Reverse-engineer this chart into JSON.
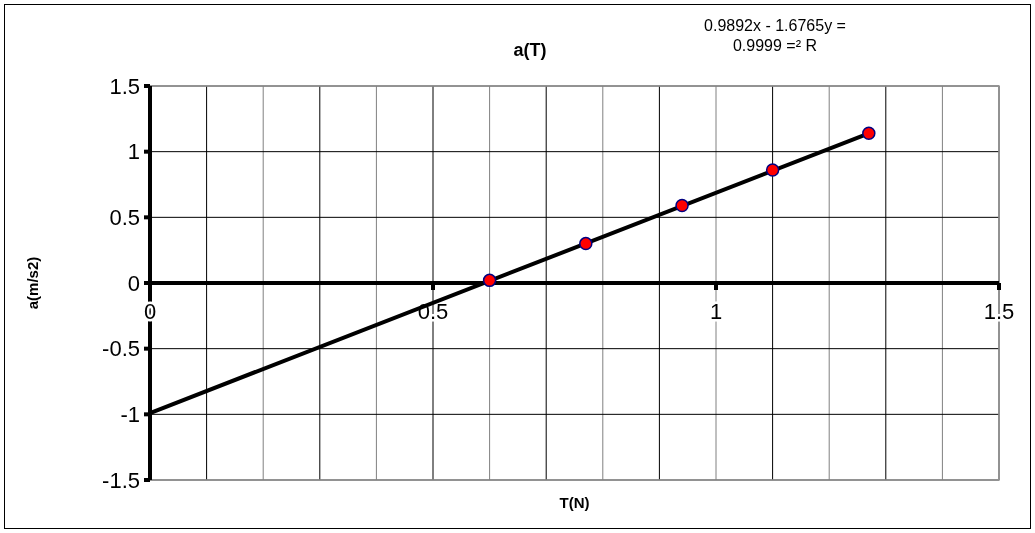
{
  "chart_data": {
    "type": "scatter",
    "title": "a(T)",
    "xlabel": "T(N)",
    "ylabel": "a(m/s2)",
    "annotations": [
      "0.9892x - 1.6765y =",
      "0.9999 =² R"
    ],
    "xlim": [
      0,
      1.5
    ],
    "ylim": [
      -1.5,
      1.5
    ],
    "xticks": [
      0,
      {
        "value": 0.1,
        "label": null
      },
      {
        "value": 0.2,
        "label": null
      },
      {
        "value": 0.3,
        "label": null
      },
      {
        "value": 0.4,
        "label": null
      },
      0.5,
      {
        "value": 0.6,
        "label": null
      },
      {
        "value": 0.7,
        "label": null
      },
      {
        "value": 0.8,
        "label": null
      },
      {
        "value": 0.9,
        "label": null
      },
      1,
      {
        "value": 1.1,
        "label": null
      },
      {
        "value": 1.2,
        "label": null
      },
      {
        "value": 1.3,
        "label": null
      },
      {
        "value": 1.4,
        "label": null
      },
      1.5
    ],
    "yticks": [
      -1.5,
      -1,
      -0.5,
      0,
      0.5,
      1,
      1.5
    ],
    "grid": true,
    "series": [
      {
        "color": "#ff0000",
        "marker": "circle",
        "x": [
          0.6,
          0.77,
          0.94,
          1.1,
          1.27
        ],
        "values": [
          0.02,
          0.3,
          0.59,
          0.86,
          1.14
        ]
      },
      {
        "type": "line",
        "color": "#000000",
        "marker": "none",
        "line_style": "solid",
        "x": [
          0,
          1.27
        ],
        "values": [
          -0.99,
          1.14
        ]
      }
    ]
  }
}
